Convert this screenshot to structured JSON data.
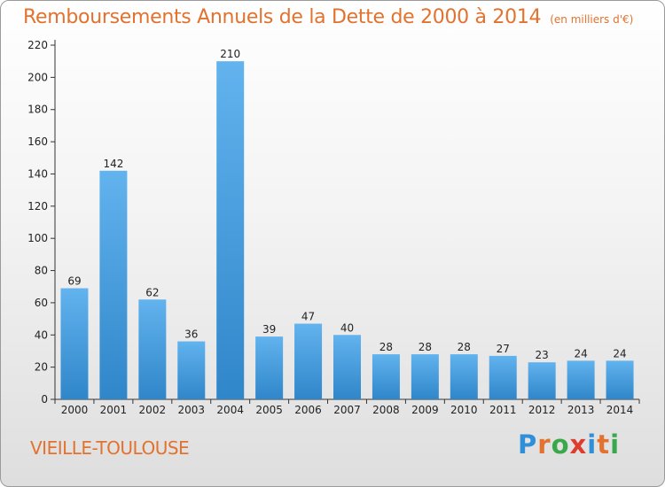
{
  "header": {
    "title": "Remboursements Annuels de la Dette de 2000 à 2014",
    "unit": "(en milliers d'€)"
  },
  "footer": {
    "commune": "VIEILLE-TOULOUSE",
    "logo_letters": [
      "P",
      "r",
      "o",
      "x",
      "i",
      "t",
      "i"
    ],
    "logo_colors": [
      "#2f8fd8",
      "#e2722e",
      "#3aa84a",
      "#e03c2e",
      "#2f8fd8",
      "#e2722e",
      "#3aa84a"
    ]
  },
  "colors": {
    "bar_light": "#62b3ee",
    "bar_dark": "#2f86c9",
    "axis": "#333333",
    "grid": "#cfcfcf"
  },
  "chart_data": {
    "type": "bar",
    "title": "Remboursements Annuels de la Dette de 2000 à 2014",
    "subtitle": "(en milliers d'€)",
    "categories": [
      "2000",
      "2001",
      "2002",
      "2003",
      "2004",
      "2005",
      "2006",
      "2007",
      "2008",
      "2009",
      "2010",
      "2011",
      "2012",
      "2013",
      "2014"
    ],
    "values": [
      69,
      142,
      62,
      36,
      210,
      39,
      47,
      40,
      28,
      28,
      28,
      27,
      23,
      24,
      24
    ],
    "ylim": [
      0,
      220
    ],
    "yticks": [
      0,
      20,
      40,
      60,
      80,
      100,
      120,
      140,
      160,
      180,
      200,
      220
    ],
    "grid": false,
    "data_labels": true
  }
}
